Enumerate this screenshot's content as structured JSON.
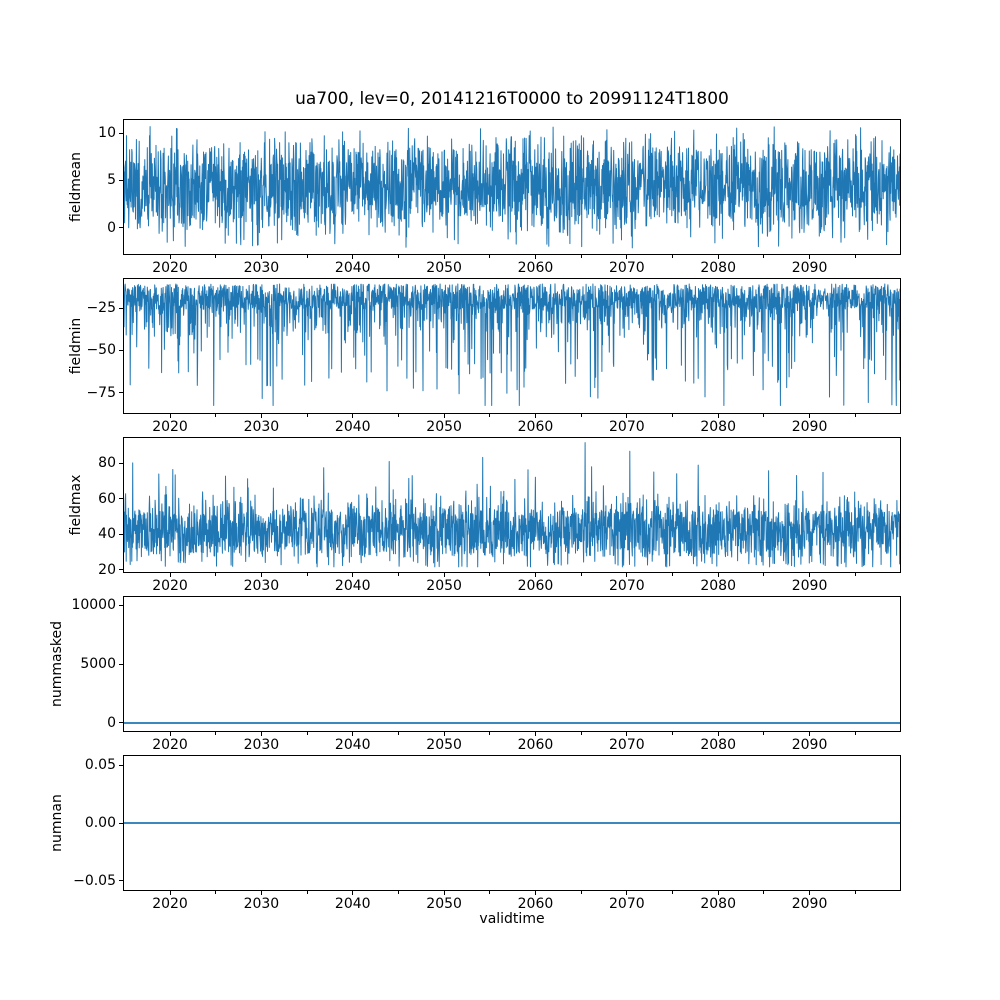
{
  "title": "ua700, lev=0, 20141216T0000 to 20991124T1800",
  "line_color": "#1f77b4",
  "x": {
    "label": "validtime",
    "lim": [
      2014.96,
      2099.9
    ],
    "major_ticks": [
      2020,
      2030,
      2040,
      2050,
      2060,
      2070,
      2080,
      2090
    ],
    "minor_ticks": [
      2025,
      2035,
      2045,
      2055,
      2065,
      2075,
      2085,
      2095
    ]
  },
  "chart_data": [
    {
      "type": "line",
      "ylabel": "fieldmean",
      "yticks": [
        0,
        5,
        10
      ],
      "ydecimals": 0,
      "ylim": [
        -2.74,
        11.37
      ],
      "summary": "dense high-frequency noisy time series, mean ~4.4, bulk between ~0 and ~9, extremes from -2.1 to 10.7, spanning 2014-12-16 to 2099-11-24",
      "gen": {
        "kind": "noise",
        "seed": 7,
        "n": 2500,
        "mean": 4.4,
        "spread": 7.6,
        "spread2": 3.2,
        "min": -2.1,
        "max": 10.7
      }
    },
    {
      "type": "line",
      "ylabel": "fieldmin",
      "yticks": [
        -25,
        -50,
        -75
      ],
      "ydecimals": 0,
      "ylim": [
        -86.9,
        -7.9
      ],
      "summary": "dense band between ~-11 and ~-30 with frequent downward spikes reaching ~-50 to ~-82",
      "gen": {
        "kind": "band-spikes-down",
        "seed": 11,
        "n": 2500,
        "hi": -10.8,
        "band": 15,
        "min": -82.5,
        "max": -10.8
      }
    },
    {
      "type": "line",
      "ylabel": "fieldmax",
      "yticks": [
        20,
        40,
        60,
        80
      ],
      "ydecimals": 0,
      "ylim": [
        18.6,
        94.1
      ],
      "summary": "dense band between ~25 and ~62 with occasional upward spikes to ~85-91 and floor near 21",
      "gen": {
        "kind": "band-spikes-up",
        "seed": 23,
        "n": 2500,
        "lo": 27,
        "band": 26,
        "min": 21.5,
        "max": 91.5
      }
    },
    {
      "type": "line",
      "ylabel": "nummasked",
      "yticks": [
        0,
        5000,
        10000
      ],
      "ydecimals": 0,
      "ylim": [
        -678,
        10678
      ],
      "summary": "constant value 0 for entire period (flat line at 0, axis scaled to 10000)",
      "gen": {
        "kind": "constant",
        "seed": 1,
        "n": 2,
        "value": 0,
        "min": -1,
        "max": 1
      }
    },
    {
      "type": "line",
      "ylabel": "numnan",
      "yticks": [
        0.05,
        0,
        -0.05
      ],
      "ydecimals": 2,
      "ylim": [
        -0.0578,
        0.0578
      ],
      "summary": "constant value 0.00 for entire period (flat line at 0.00)",
      "gen": {
        "kind": "constant",
        "seed": 2,
        "n": 2,
        "value": 0,
        "min": -1,
        "max": 1
      }
    }
  ]
}
